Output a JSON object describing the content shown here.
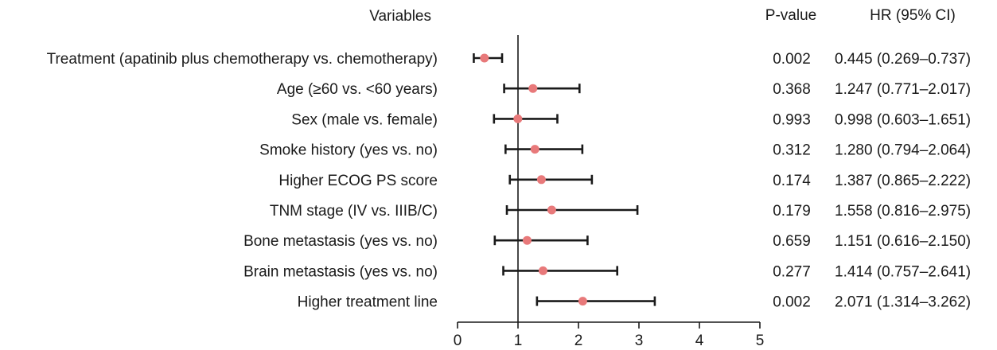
{
  "chart_data": {
    "type": "forest",
    "headers": {
      "variables": "Variables",
      "pvalue": "P-value",
      "hr": "HR (95% CI)"
    },
    "rows": [
      {
        "label": "Treatment (apatinib plus chemotherapy vs. chemotherapy)",
        "hr": 0.445,
        "lo": 0.269,
        "hi": 0.737,
        "p": "0.002",
        "hr_text": "0.445 (0.269–0.737)"
      },
      {
        "label": "Age (≥60 vs. <60 years)",
        "hr": 1.247,
        "lo": 0.771,
        "hi": 2.017,
        "p": "0.368",
        "hr_text": "1.247 (0.771–2.017)"
      },
      {
        "label": "Sex (male vs. female)",
        "hr": 0.998,
        "lo": 0.603,
        "hi": 1.651,
        "p": "0.993",
        "hr_text": "0.998 (0.603–1.651)"
      },
      {
        "label": "Smoke history (yes vs. no)",
        "hr": 1.28,
        "lo": 0.794,
        "hi": 2.064,
        "p": "0.312",
        "hr_text": "1.280 (0.794–2.064)"
      },
      {
        "label": "Higher ECOG PS score",
        "hr": 1.387,
        "lo": 0.865,
        "hi": 2.222,
        "p": "0.174",
        "hr_text": "1.387 (0.865–2.222)"
      },
      {
        "label": "TNM stage (IV vs. IIIB/C)",
        "hr": 1.558,
        "lo": 0.816,
        "hi": 2.975,
        "p": "0.179",
        "hr_text": "1.558 (0.816–2.975)"
      },
      {
        "label": "Bone metastasis (yes vs. no)",
        "hr": 1.151,
        "lo": 0.616,
        "hi": 2.15,
        "p": "0.659",
        "hr_text": "1.151 (0.616–2.150)"
      },
      {
        "label": "Brain metastasis (yes vs. no)",
        "hr": 1.414,
        "lo": 0.757,
        "hi": 2.641,
        "p": "0.277",
        "hr_text": "1.414 (0.757–2.641)"
      },
      {
        "label": "Higher treatment line",
        "hr": 2.071,
        "lo": 1.314,
        "hi": 3.262,
        "p": "0.002",
        "hr_text": "2.071 (1.314–3.262)"
      }
    ],
    "xlim": [
      0,
      5
    ],
    "xticks": [
      0,
      1,
      2,
      3,
      4,
      5
    ],
    "reference_line": 1,
    "point_color": "#e8797a",
    "line_color": "#1a1a1a",
    "grid": false
  }
}
